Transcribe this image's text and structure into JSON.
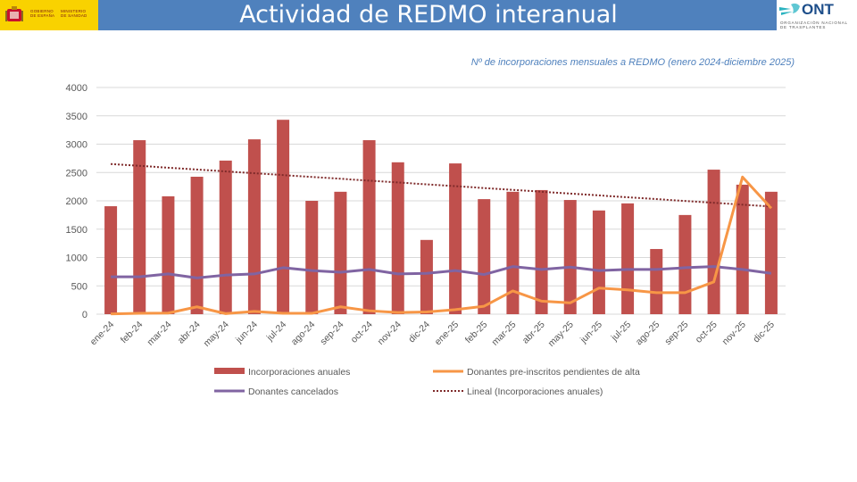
{
  "header": {
    "title": "Actividad de REDMO interanual",
    "gov_line1": "GOBIERNO",
    "gov_line2": "DE ESPAÑA",
    "ministry_line1": "MINISTERIO",
    "ministry_line2": "DE SANIDAD",
    "ont_word": "ONT",
    "ont_line1": "ORGANIZACIÓN NACIONAL",
    "ont_line2": "DE TRASPLANTES",
    "band_color": "#4f81bd",
    "gov_color": "#f9d200"
  },
  "chart_data": {
    "type": "bar",
    "title": "Nº de incorporaciones mensuales a REDMO (enero 2024-diciembre 2025)",
    "xlabel": "",
    "ylabel": "",
    "ylim": [
      0,
      4000
    ],
    "yticks": [
      0,
      500,
      1000,
      1500,
      2000,
      2500,
      3000,
      3500,
      4000
    ],
    "grid": true,
    "legend_position": "bottom",
    "categories": [
      "ene-24",
      "feb-24",
      "mar-24",
      "abr-24",
      "may-24",
      "jun-24",
      "jul-24",
      "ago-24",
      "sep-24",
      "oct-24",
      "nov-24",
      "dic-24",
      "ene-25",
      "feb-25",
      "mar-25",
      "abr-25",
      "may-25",
      "jun-25",
      "jul-25",
      "ago-25",
      "sep-25",
      "oct-25",
      "nov-25",
      "dic-25"
    ],
    "series": [
      {
        "name": "Incorporaciones anuales",
        "kind": "bar",
        "color": "#c0504d",
        "values": [
          1905,
          3070,
          2080,
          2425,
          2710,
          3085,
          3430,
          2000,
          2160,
          3070,
          2680,
          1310,
          2660,
          2030,
          2160,
          2190,
          2015,
          1830,
          1955,
          1150,
          1750,
          2550,
          2285,
          2160
        ]
      },
      {
        "name": "Donantes pre-inscritos pendientes de alta",
        "kind": "line",
        "color": "#f79646",
        "values": [
          5,
          15,
          20,
          130,
          10,
          50,
          15,
          15,
          130,
          60,
          30,
          40,
          80,
          140,
          410,
          230,
          200,
          460,
          430,
          380,
          380,
          570,
          2420,
          1870
        ]
      },
      {
        "name": "Donantes cancelados",
        "kind": "line",
        "color": "#8064a2",
        "values": [
          660,
          660,
          710,
          640,
          690,
          710,
          820,
          770,
          740,
          790,
          710,
          720,
          770,
          700,
          840,
          790,
          830,
          770,
          790,
          790,
          820,
          840,
          790,
          720
        ]
      },
      {
        "name": "Lineal (Incorporaciones anuales)",
        "kind": "trendline",
        "color": "#7f2a2a",
        "values": [
          2650,
          1900
        ]
      }
    ]
  }
}
